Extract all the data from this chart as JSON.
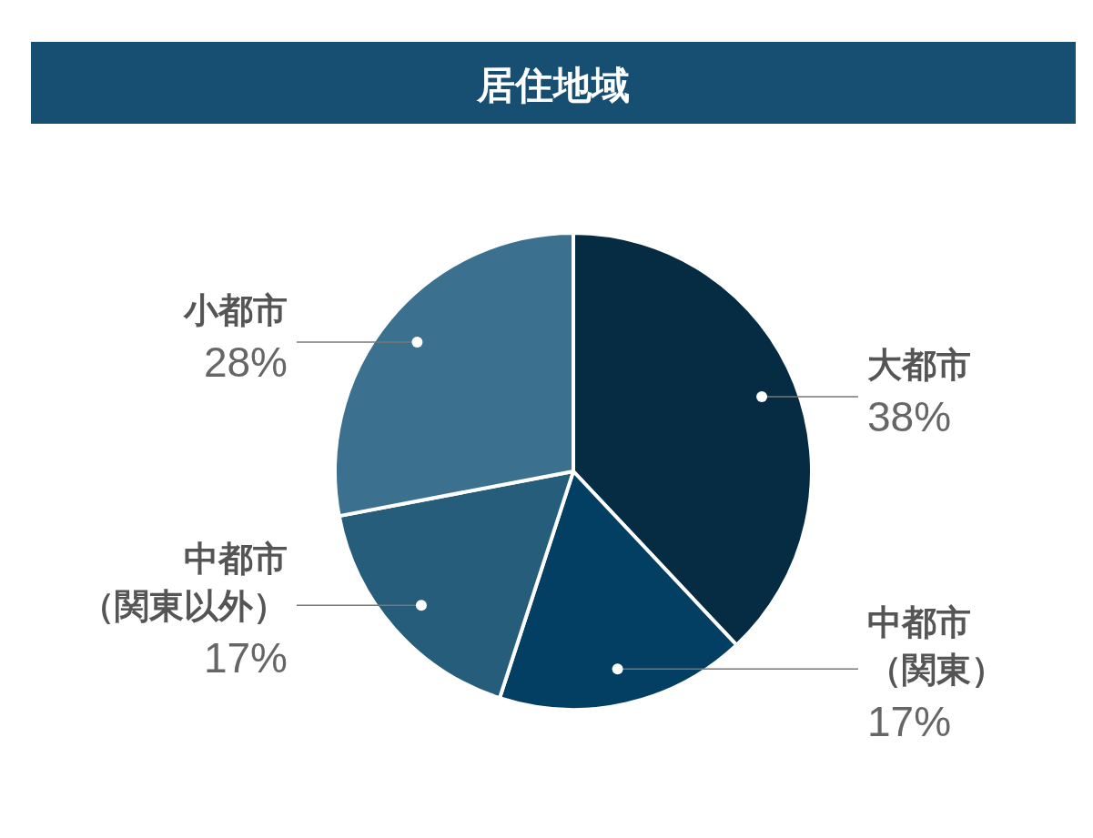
{
  "chart_data": {
    "type": "pie",
    "title": "居住地域",
    "categories": [
      "大都市",
      "中都市（関東）",
      "中都市（関東以外）",
      "小都市"
    ],
    "values": [
      38,
      17,
      17,
      28
    ],
    "colors": [
      "#052c42",
      "#023f63",
      "#255d7a",
      "#3b718f"
    ],
    "value_labels": [
      "38%",
      "17%",
      "17%",
      "28%"
    ]
  }
}
